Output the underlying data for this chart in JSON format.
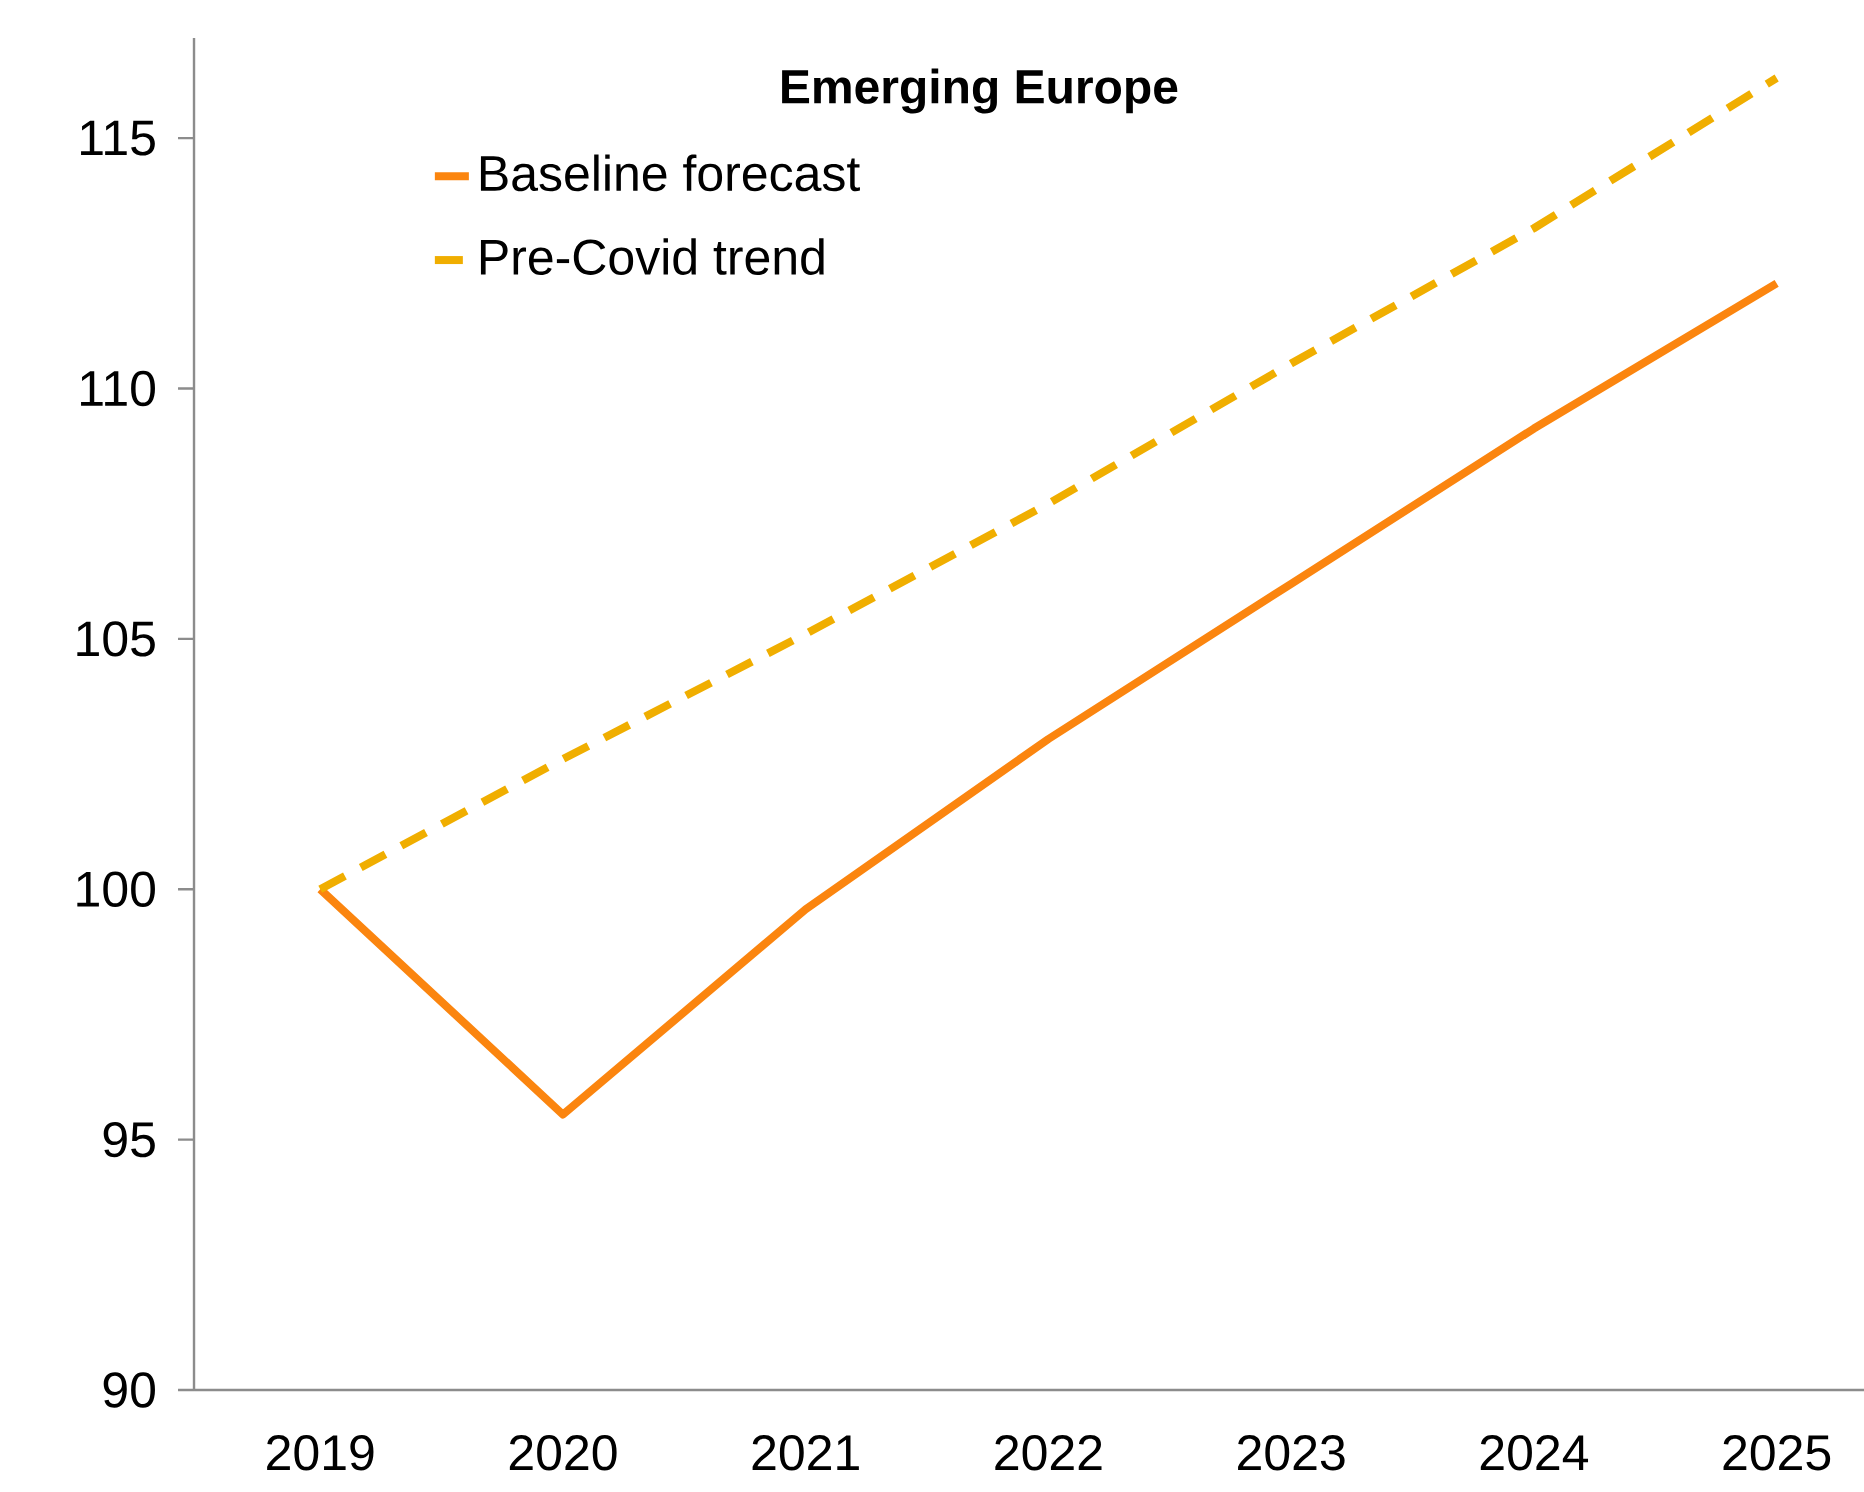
{
  "chart_data": {
    "type": "line",
    "title": "Emerging Europe",
    "categories": [
      "2019",
      "2020",
      "2021",
      "2022",
      "2023",
      "2024",
      "2025"
    ],
    "series": [
      {
        "name": "Baseline forecast",
        "color": "#fb850f",
        "line_style": "solid",
        "values": [
          100,
          95.5,
          99.6,
          103.0,
          106.1,
          109.2,
          112.1
        ]
      },
      {
        "name": "Pre-Covid trend",
        "color": "#f0ae00",
        "line_style": "dashed",
        "values": [
          100,
          102.6,
          105.1,
          107.7,
          110.5,
          113.2,
          116.2
        ]
      }
    ],
    "ylim": [
      90,
      117
    ],
    "yticks": [
      90,
      95,
      100,
      105,
      110,
      115
    ],
    "grid": false,
    "legend": "top left",
    "marker": "none"
  }
}
